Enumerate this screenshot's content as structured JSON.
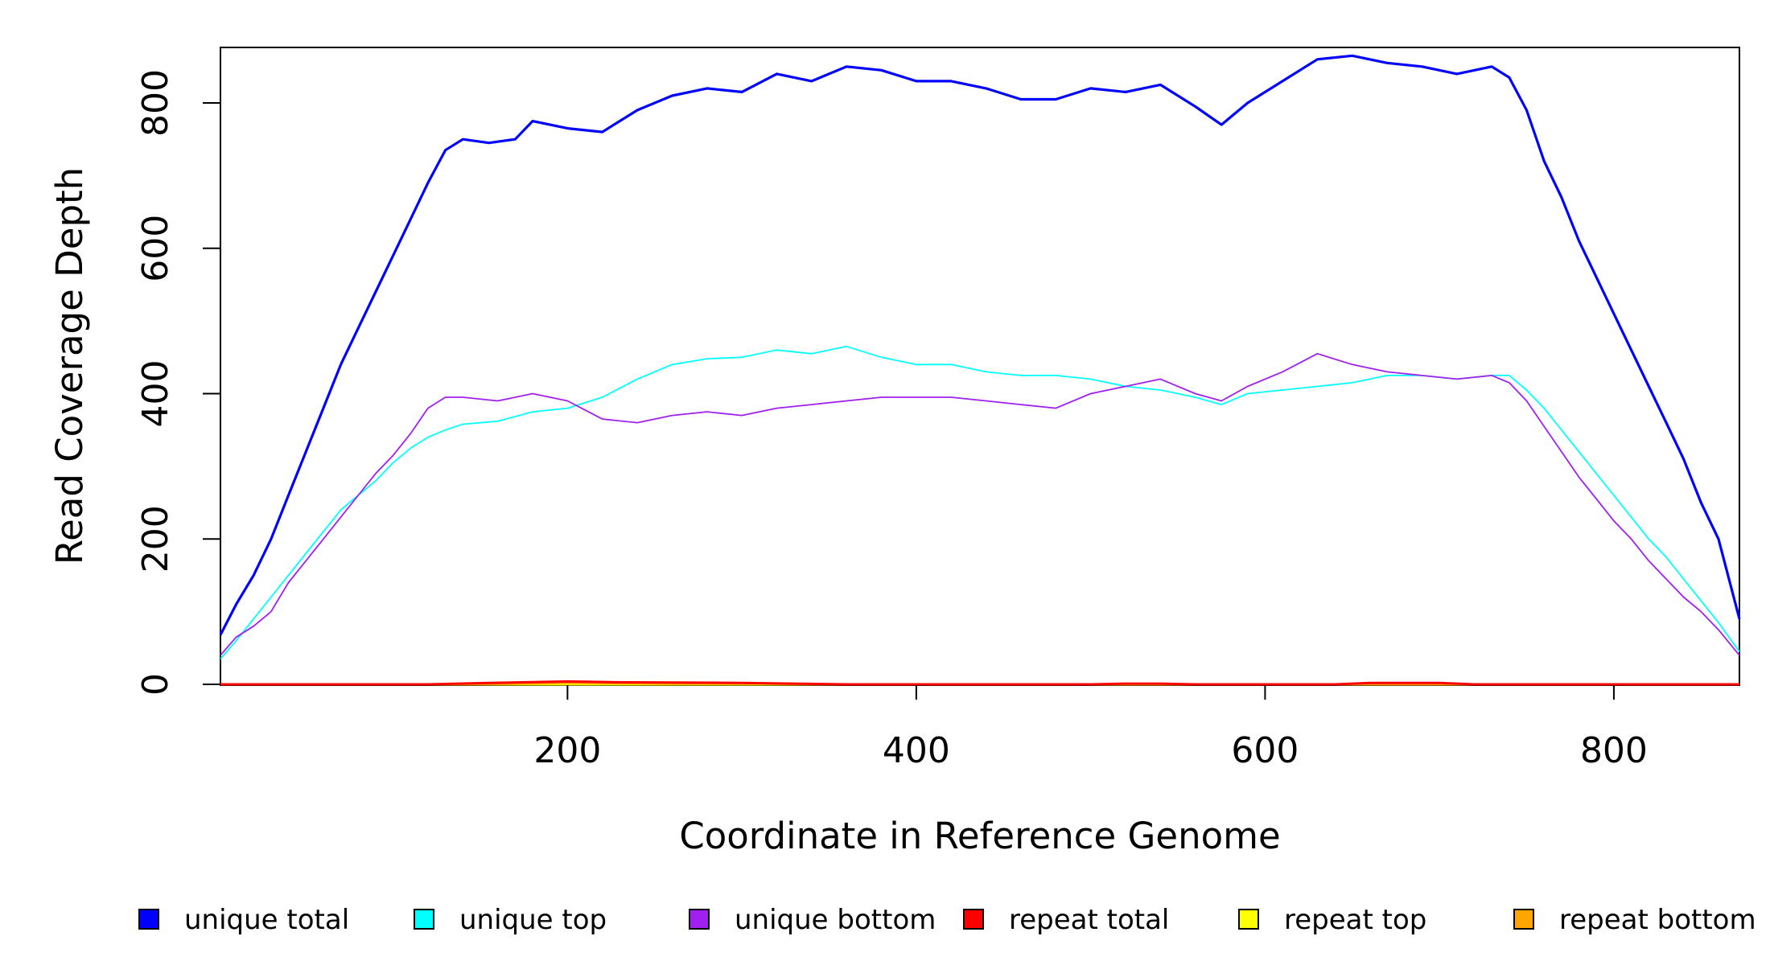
{
  "chart_data": {
    "type": "line",
    "title": "",
    "xlabel": "Coordinate in Reference Genome",
    "ylabel": "Read Coverage Depth",
    "xlim": [
      1,
      872
    ],
    "ylim": [
      0,
      875
    ],
    "xticks": [
      200,
      400,
      600,
      800
    ],
    "yticks": [
      0,
      200,
      400,
      600,
      800
    ],
    "grid": false,
    "legend_position": "bottom",
    "series": [
      {
        "name": "unique total",
        "color": "#0000ff",
        "points": [
          [
            1,
            68
          ],
          [
            10,
            110
          ],
          [
            20,
            150
          ],
          [
            30,
            200
          ],
          [
            40,
            260
          ],
          [
            50,
            320
          ],
          [
            60,
            380
          ],
          [
            70,
            440
          ],
          [
            80,
            490
          ],
          [
            90,
            540
          ],
          [
            100,
            590
          ],
          [
            110,
            640
          ],
          [
            120,
            690
          ],
          [
            130,
            735
          ],
          [
            140,
            750
          ],
          [
            155,
            745
          ],
          [
            170,
            750
          ],
          [
            180,
            775
          ],
          [
            200,
            765
          ],
          [
            220,
            760
          ],
          [
            240,
            790
          ],
          [
            260,
            810
          ],
          [
            280,
            820
          ],
          [
            300,
            815
          ],
          [
            320,
            840
          ],
          [
            340,
            830
          ],
          [
            360,
            850
          ],
          [
            380,
            845
          ],
          [
            400,
            830
          ],
          [
            420,
            830
          ],
          [
            440,
            820
          ],
          [
            460,
            805
          ],
          [
            480,
            805
          ],
          [
            500,
            820
          ],
          [
            520,
            815
          ],
          [
            540,
            825
          ],
          [
            560,
            795
          ],
          [
            575,
            770
          ],
          [
            590,
            800
          ],
          [
            610,
            830
          ],
          [
            630,
            860
          ],
          [
            650,
            865
          ],
          [
            670,
            855
          ],
          [
            690,
            850
          ],
          [
            710,
            840
          ],
          [
            730,
            850
          ],
          [
            740,
            835
          ],
          [
            750,
            790
          ],
          [
            760,
            720
          ],
          [
            770,
            670
          ],
          [
            780,
            610
          ],
          [
            790,
            560
          ],
          [
            800,
            510
          ],
          [
            810,
            460
          ],
          [
            820,
            410
          ],
          [
            830,
            360
          ],
          [
            840,
            310
          ],
          [
            850,
            250
          ],
          [
            860,
            200
          ],
          [
            872,
            90
          ]
        ]
      },
      {
        "name": "unique top",
        "color": "#00ffff",
        "points": [
          [
            1,
            35
          ],
          [
            10,
            60
          ],
          [
            20,
            90
          ],
          [
            30,
            120
          ],
          [
            40,
            150
          ],
          [
            50,
            180
          ],
          [
            60,
            210
          ],
          [
            70,
            240
          ],
          [
            80,
            260
          ],
          [
            90,
            280
          ],
          [
            100,
            305
          ],
          [
            110,
            325
          ],
          [
            120,
            340
          ],
          [
            130,
            350
          ],
          [
            140,
            358
          ],
          [
            160,
            362
          ],
          [
            180,
            375
          ],
          [
            200,
            380
          ],
          [
            220,
            395
          ],
          [
            240,
            420
          ],
          [
            260,
            440
          ],
          [
            280,
            448
          ],
          [
            300,
            450
          ],
          [
            320,
            460
          ],
          [
            340,
            455
          ],
          [
            360,
            465
          ],
          [
            380,
            450
          ],
          [
            400,
            440
          ],
          [
            420,
            440
          ],
          [
            440,
            430
          ],
          [
            460,
            425
          ],
          [
            480,
            425
          ],
          [
            500,
            420
          ],
          [
            520,
            410
          ],
          [
            540,
            405
          ],
          [
            560,
            395
          ],
          [
            575,
            385
          ],
          [
            590,
            400
          ],
          [
            610,
            405
          ],
          [
            630,
            410
          ],
          [
            650,
            415
          ],
          [
            670,
            425
          ],
          [
            690,
            425
          ],
          [
            710,
            420
          ],
          [
            730,
            425
          ],
          [
            740,
            425
          ],
          [
            750,
            405
          ],
          [
            760,
            380
          ],
          [
            770,
            350
          ],
          [
            780,
            320
          ],
          [
            790,
            290
          ],
          [
            800,
            260
          ],
          [
            810,
            230
          ],
          [
            820,
            200
          ],
          [
            830,
            175
          ],
          [
            840,
            145
          ],
          [
            850,
            115
          ],
          [
            860,
            85
          ],
          [
            872,
            45
          ]
        ]
      },
      {
        "name": "unique bottom",
        "color": "#a020f0",
        "points": [
          [
            1,
            40
          ],
          [
            10,
            65
          ],
          [
            20,
            80
          ],
          [
            30,
            100
          ],
          [
            40,
            140
          ],
          [
            50,
            170
          ],
          [
            60,
            200
          ],
          [
            70,
            230
          ],
          [
            80,
            260
          ],
          [
            90,
            290
          ],
          [
            100,
            315
          ],
          [
            110,
            345
          ],
          [
            120,
            380
          ],
          [
            130,
            395
          ],
          [
            140,
            395
          ],
          [
            160,
            390
          ],
          [
            180,
            400
          ],
          [
            200,
            390
          ],
          [
            220,
            365
          ],
          [
            240,
            360
          ],
          [
            260,
            370
          ],
          [
            280,
            375
          ],
          [
            300,
            370
          ],
          [
            320,
            380
          ],
          [
            340,
            385
          ],
          [
            360,
            390
          ],
          [
            380,
            395
          ],
          [
            400,
            395
          ],
          [
            420,
            395
          ],
          [
            440,
            390
          ],
          [
            460,
            385
          ],
          [
            480,
            380
          ],
          [
            500,
            400
          ],
          [
            520,
            410
          ],
          [
            540,
            420
          ],
          [
            560,
            400
          ],
          [
            575,
            390
          ],
          [
            590,
            410
          ],
          [
            610,
            430
          ],
          [
            630,
            455
          ],
          [
            650,
            440
          ],
          [
            670,
            430
          ],
          [
            690,
            425
          ],
          [
            710,
            420
          ],
          [
            730,
            425
          ],
          [
            740,
            415
          ],
          [
            750,
            390
          ],
          [
            760,
            355
          ],
          [
            770,
            320
          ],
          [
            780,
            285
          ],
          [
            790,
            255
          ],
          [
            800,
            225
          ],
          [
            810,
            200
          ],
          [
            820,
            170
          ],
          [
            830,
            145
          ],
          [
            840,
            120
          ],
          [
            850,
            100
          ],
          [
            860,
            75
          ],
          [
            872,
            40
          ]
        ]
      },
      {
        "name": "repeat total",
        "color": "#ff0000",
        "points": [
          [
            1,
            0
          ],
          [
            120,
            0
          ],
          [
            155,
            2
          ],
          [
            180,
            3
          ],
          [
            200,
            4
          ],
          [
            225,
            3
          ],
          [
            300,
            2
          ],
          [
            330,
            1
          ],
          [
            360,
            0
          ],
          [
            500,
            0
          ],
          [
            520,
            1
          ],
          [
            540,
            1
          ],
          [
            560,
            0
          ],
          [
            640,
            0
          ],
          [
            660,
            2
          ],
          [
            700,
            2
          ],
          [
            720,
            0
          ],
          [
            872,
            0
          ]
        ]
      },
      {
        "name": "repeat top",
        "color": "#ffff00",
        "points": [
          [
            1,
            0
          ],
          [
            872,
            0
          ]
        ]
      },
      {
        "name": "repeat bottom",
        "color": "#ffa500",
        "points": [
          [
            1,
            0
          ],
          [
            150,
            0
          ],
          [
            170,
            1
          ],
          [
            200,
            2
          ],
          [
            260,
            1
          ],
          [
            310,
            1
          ],
          [
            340,
            0
          ],
          [
            872,
            0
          ]
        ]
      }
    ]
  }
}
